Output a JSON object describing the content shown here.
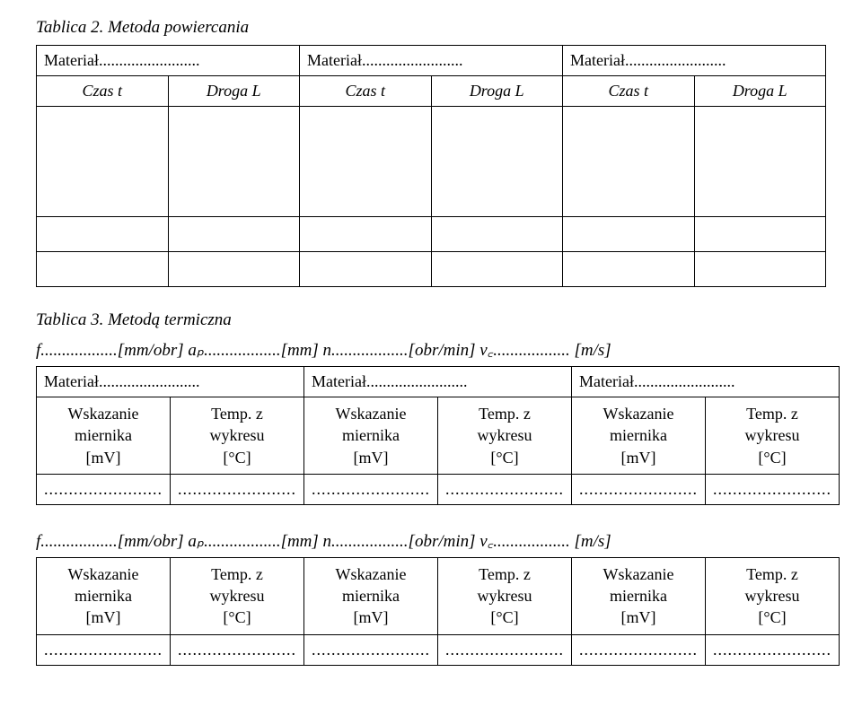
{
  "table2": {
    "title": "Tablica 2. Metoda powiercania",
    "mat1": "Materiał.........................",
    "mat2": "Materiał.........................",
    "mat3": "Materiał.........................",
    "h1a": "Czas t",
    "h1b": "Droga L",
    "h2a": "Czas t",
    "h2b": "Droga L",
    "h3a": "Czas t",
    "h3b": "Droga L"
  },
  "table3": {
    "title": "Tablica 3. Metodą termiczna",
    "paramline": "f..................[mm/obr]   aₚ..................[mm]   n..................[obr/min]   v꜀.................. [m/s]",
    "paramline2": "f..................[mm/obr]   aₚ..................[mm]   n..................[obr/min]   v꜀.................. [m/s]",
    "mat1": "Materiał.........................",
    "mat2": "Materiał.........................",
    "mat3": "Materiał.........................",
    "col_wsk": "Wskazanie\nmiernika\n[mV]",
    "col_temp": "Temp. z\nwykresu\n[°C]",
    "dots": "........................"
  }
}
